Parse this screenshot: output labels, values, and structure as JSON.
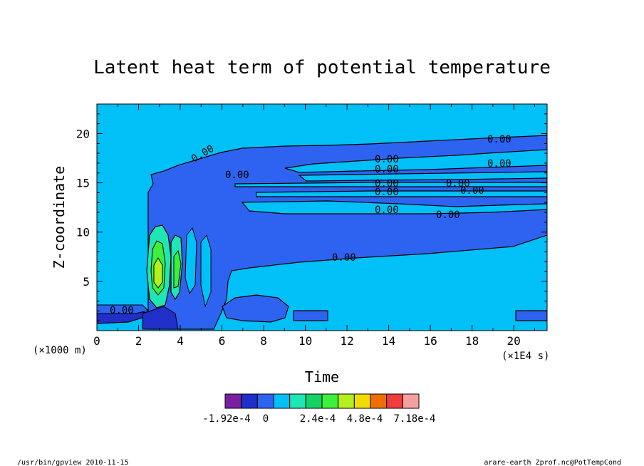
{
  "chart_data": {
    "type": "contour",
    "title": "Latent heat term of potential temperature",
    "xlabel": "Time",
    "ylabel": "Z-coordinate",
    "x_unit_label": "(×1E4 s)",
    "y_unit_label": "(×1000 m)",
    "xlim": [
      0,
      21.6
    ],
    "ylim": [
      0,
      23
    ],
    "x_ticks": [
      0,
      2,
      4,
      6,
      8,
      10,
      12,
      14,
      16,
      18,
      20
    ],
    "y_ticks": [
      5,
      10,
      15,
      20
    ],
    "contour_labels": [
      "0.00",
      "0.00",
      "0.00",
      "0.00",
      "0.00",
      "0.00",
      "0.00",
      "0.00",
      "0.00",
      "0.00",
      "0.00",
      "0.00",
      "0.00",
      "0.00"
    ],
    "colorbar": {
      "tick_labels": [
        "-1.92e-4",
        "0",
        "2.4e-4",
        "4.8e-4",
        "7.18e-4"
      ],
      "colors": [
        "#7b1fa2",
        "#1f2fc8",
        "#2d63f0",
        "#00c0f8",
        "#1ee6b4",
        "#14d264",
        "#3cf03c",
        "#b4f01e",
        "#f0dc00",
        "#f06e00",
        "#f03c3c",
        "#f5a0a0"
      ]
    },
    "background_color": "#00c0f8"
  },
  "footer": {
    "left": "/usr/bin/gpview   2010-11-15",
    "right": "arare-earth_Zprof.nc@PotTempCond"
  }
}
